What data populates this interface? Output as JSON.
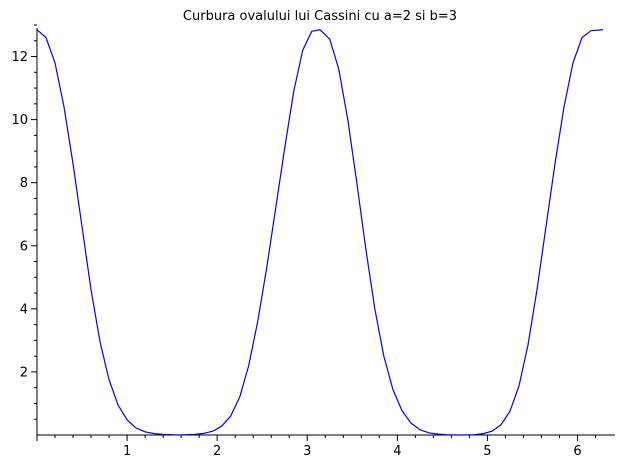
{
  "chart_data": {
    "type": "line",
    "title": "Curbura ovalului lui Cassini cu a=2 si b=3",
    "xlabel": "",
    "ylabel": "",
    "xlim": [
      0,
      6.283
    ],
    "ylim": [
      0,
      13
    ],
    "x_ticks": [
      1,
      2,
      3,
      4,
      5,
      6
    ],
    "y_ticks": [
      2,
      4,
      6,
      8,
      10,
      12
    ],
    "x_tick_labels": [
      "1",
      "2",
      "3",
      "4",
      "5",
      "6"
    ],
    "y_tick_labels": [
      "2",
      "4",
      "6",
      "8",
      "10",
      "12"
    ],
    "grid": false,
    "line_color": "#0000ff",
    "series": [
      {
        "x": [
          0,
          0.1,
          0.2,
          0.3,
          0.4,
          0.5,
          0.6,
          0.7,
          0.8,
          0.9,
          1.0,
          1.1,
          1.2,
          1.3,
          1.4,
          1.5,
          1.5708,
          1.65,
          1.75,
          1.85,
          1.95,
          2.05,
          2.15,
          2.25,
          2.35,
          2.45,
          2.55,
          2.65,
          2.75,
          2.85,
          2.95,
          3.05,
          3.1416,
          3.25,
          3.35,
          3.45,
          3.55,
          3.65,
          3.75,
          3.85,
          3.95,
          4.05,
          4.15,
          4.25,
          4.35,
          4.45,
          4.55,
          4.7124,
          4.85,
          4.95,
          5.05,
          5.15,
          5.25,
          5.35,
          5.45,
          5.55,
          5.65,
          5.75,
          5.85,
          5.95,
          6.05,
          6.15,
          6.283
        ],
        "y": [
          12.85,
          12.6,
          11.8,
          10.4,
          8.6,
          6.6,
          4.6,
          2.95,
          1.75,
          0.95,
          0.48,
          0.22,
          0.1,
          0.045,
          0.02,
          0.01,
          0.0,
          0.01,
          0.02,
          0.05,
          0.12,
          0.28,
          0.6,
          1.2,
          2.2,
          3.6,
          5.3,
          7.2,
          9.1,
          10.9,
          12.2,
          12.8,
          12.85,
          12.55,
          11.6,
          10.0,
          8.0,
          5.9,
          4.0,
          2.5,
          1.45,
          0.78,
          0.38,
          0.17,
          0.07,
          0.03,
          0.01,
          0.0,
          0.01,
          0.04,
          0.12,
          0.32,
          0.75,
          1.55,
          2.85,
          4.6,
          6.6,
          8.6,
          10.4,
          11.8,
          12.6,
          12.82,
          12.85
        ]
      }
    ]
  }
}
